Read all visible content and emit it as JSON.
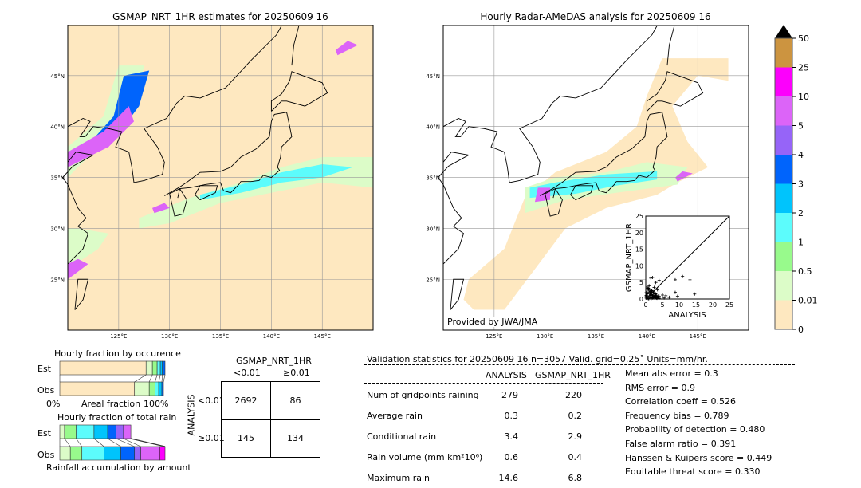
{
  "chart_data": [
    {
      "type": "heatmap",
      "title": "GSMAP_NRT_1HR estimates for 20250609 16",
      "xlim": [
        120,
        150
      ],
      "ylim": [
        20,
        50
      ],
      "xticks": [
        "125°E",
        "130°E",
        "135°E",
        "140°E",
        "145°E"
      ],
      "xtick_values": [
        125,
        130,
        135,
        140,
        145
      ],
      "yticks": [
        "25°N",
        "30°N",
        "35°N",
        "40°N",
        "45°N"
      ],
      "ytick_values": [
        25,
        30,
        35,
        40,
        45
      ],
      "grid": true
    },
    {
      "type": "heatmap",
      "title": "Hourly Radar-AMeDAS analysis for 20250609 16",
      "xlim": [
        120,
        150
      ],
      "ylim": [
        20,
        50
      ],
      "xticks": [
        "125°E",
        "130°E",
        "135°E",
        "140°E",
        "145°E"
      ],
      "xtick_values": [
        125,
        130,
        135,
        140,
        145
      ],
      "yticks": [
        "25°N",
        "30°N",
        "35°N",
        "40°N",
        "45°N"
      ],
      "ytick_values": [
        25,
        30,
        35,
        40,
        45
      ],
      "grid": true,
      "annotation": "Provided by JWA/JMA"
    },
    {
      "type": "scatter",
      "xlabel": "ANALYSIS",
      "ylabel": "GSMAP_NRT_1HR",
      "xlim": [
        0,
        25
      ],
      "ylim": [
        0,
        25
      ],
      "ticks": [
        "0",
        "5",
        "10",
        "15",
        "20",
        "25"
      ],
      "points": [
        [
          14.6,
          1.5
        ],
        [
          13.2,
          5.8
        ],
        [
          11,
          6.8
        ],
        [
          8.8,
          5.8
        ],
        [
          8.8,
          2
        ],
        [
          9.5,
          0.8
        ],
        [
          5,
          1.2
        ],
        [
          4,
          5.6
        ],
        [
          3,
          5
        ],
        [
          2,
          6.5
        ],
        [
          1.5,
          6.3
        ],
        [
          2.5,
          3.5
        ],
        [
          1,
          2
        ],
        [
          0.5,
          1
        ],
        [
          1.5,
          0.5
        ],
        [
          3,
          1.5
        ],
        [
          4,
          0.8
        ],
        [
          6,
          1
        ],
        [
          7,
          0.5
        ],
        [
          2,
          1
        ],
        [
          1,
          4
        ],
        [
          0.3,
          3
        ],
        [
          2.2,
          2.2
        ],
        [
          5.5,
          0.3
        ],
        [
          3.5,
          2.8
        ]
      ]
    },
    {
      "type": "bar",
      "title": "colorbar",
      "levels": [
        "0",
        "0.01",
        "0.5",
        "1",
        "2",
        "3",
        "4",
        "5",
        "10",
        "25",
        "50"
      ],
      "colors": [
        "#fee8c0",
        "#dcfcc8",
        "#98fa8c",
        "#5cfcfc",
        "#00c4fc",
        "#0064fc",
        "#9664f8",
        "#dc64f8",
        "#fc00fc",
        "#cc9440"
      ]
    }
  ],
  "occurrence": {
    "title": "Hourly fraction by occurence",
    "est_label": "Est",
    "obs_label": "Obs",
    "xlabel": "Areal fraction",
    "x0": "0%",
    "x1": "100%",
    "est": [
      0.82,
      0.06,
      0.045,
      0.03,
      0.02,
      0.025
    ],
    "obs": [
      0.71,
      0.14,
      0.055,
      0.035,
      0.03,
      0.015
    ]
  },
  "totalrain": {
    "title": "Hourly fraction of total rain",
    "est_label": "Est",
    "obs_label": "Obs",
    "xlabel": "Rainfall accumulation by amount",
    "est": [
      0.045,
      0.11,
      0.17,
      0.13,
      0.08,
      0.07,
      0.07
    ],
    "obs": [
      0.1,
      0.11,
      0.21,
      0.16,
      0.13,
      0.06,
      0.18,
      0.05
    ]
  },
  "contingency": {
    "title": "GSMAP_NRT_1HR",
    "col1": "<0.01",
    "col2": "≥0.01",
    "row_axis": "ANALYSIS",
    "row1": "<0.01",
    "row2": "≥0.01",
    "cells": [
      "2692",
      "86",
      "145",
      "134"
    ]
  },
  "stats": {
    "header": "Validation statistics for 20250609 16  n=3057 Valid. grid=0.25˚ Units=mm/hr.",
    "col_analysis": "ANALYSIS",
    "col_gsmap": "GSMAP_NRT_1HR",
    "rows": [
      {
        "label": "Num of gridpoints raining",
        "a": "279",
        "g": "220"
      },
      {
        "label": "Average rain",
        "a": "0.3",
        "g": "0.2"
      },
      {
        "label": "Conditional rain",
        "a": "3.4",
        "g": "2.9"
      },
      {
        "label": "Rain volume (mm km²10⁶)",
        "a": "0.6",
        "g": "0.4"
      },
      {
        "label": "Maximum rain",
        "a": "14.6",
        "g": "6.8"
      }
    ],
    "scores": [
      "Mean abs error =    0.3",
      "RMS error =    0.9",
      "Correlation coeff =  0.526",
      "Frequency bias =  0.789",
      "Probability of detection =  0.480",
      "False alarm ratio =  0.391",
      "Hanssen & Kuipers score =  0.449",
      "Equitable threat score =  0.330"
    ]
  }
}
